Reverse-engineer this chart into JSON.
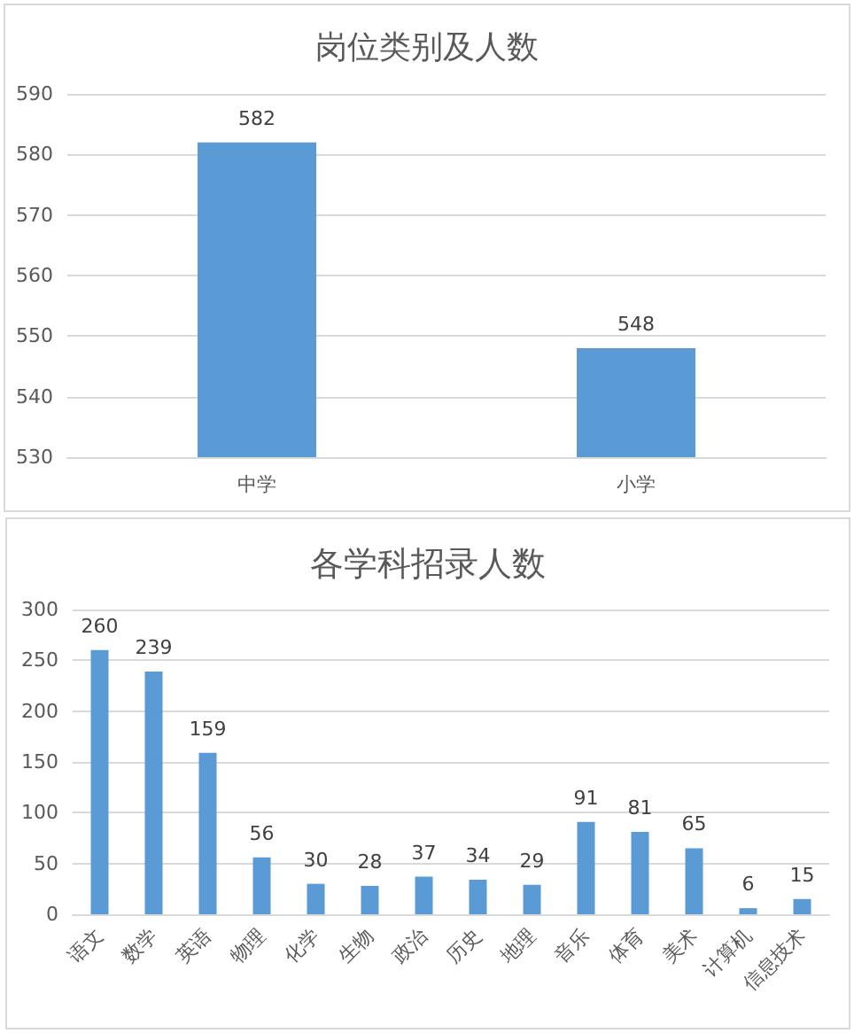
{
  "chart_data": [
    {
      "type": "bar",
      "title": "岗位类别及人数",
      "categories": [
        "中学",
        "小学"
      ],
      "values": [
        582,
        548
      ],
      "color": "#5b9bd5",
      "ylim": [
        530,
        590
      ],
      "yticks": [
        530,
        540,
        550,
        560,
        570,
        580,
        590
      ],
      "grid": "y",
      "data_labels": true
    },
    {
      "type": "bar",
      "title": "各学科招录人数",
      "categories": [
        "语文",
        "数学",
        "英语",
        "物理",
        "化学",
        "生物",
        "政治",
        "历史",
        "地理",
        "音乐",
        "体育",
        "美术",
        "计算机",
        "信息技术"
      ],
      "values": [
        260,
        239,
        159,
        56,
        30,
        28,
        37,
        34,
        29,
        91,
        81,
        65,
        6,
        15
      ],
      "color": "#5b9bd5",
      "ylim": [
        0,
        300
      ],
      "yticks": [
        0,
        50,
        100,
        150,
        200,
        250,
        300
      ],
      "grid": "y",
      "data_labels": true
    }
  ]
}
